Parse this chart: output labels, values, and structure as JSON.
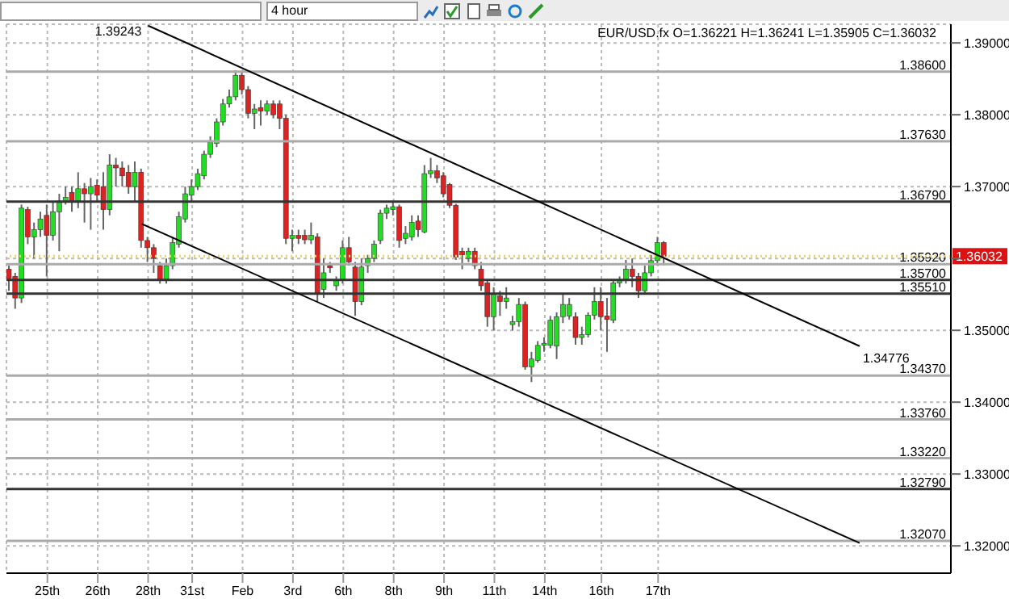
{
  "chart_data": {
    "type": "candlestick",
    "title": "EUR/USD.fx O=1.36221 H=1.36241 L=1.35905 C=1.36032",
    "annotations": [
      "4 hour",
      "1.39243",
      "1.34776"
    ],
    "categories": [
      null,
      null,
      null,
      null,
      null,
      null,
      "25th",
      null,
      null,
      null,
      null,
      null,
      null,
      null,
      "26th",
      null,
      null,
      null,
      null,
      null,
      null,
      null,
      "28th",
      null,
      null,
      null,
      null,
      null,
      null,
      "31st",
      null,
      null,
      null,
      null,
      null,
      null,
      null,
      "Feb",
      null,
      null,
      null,
      null,
      null,
      null,
      null,
      "3rd",
      null,
      null,
      null,
      null,
      null,
      null,
      null,
      "6th",
      null,
      null,
      null,
      null,
      null,
      null,
      null,
      "8th",
      null,
      null,
      null,
      null,
      null,
      null,
      null,
      "9th",
      null,
      null,
      null,
      null,
      null,
      null,
      null,
      "11th",
      null,
      null,
      null,
      null,
      null,
      null,
      null,
      "14th",
      null,
      null,
      null,
      null,
      null,
      null,
      null,
      null,
      "16th",
      null,
      null,
      null,
      null,
      null,
      null,
      null,
      null,
      "17th",
      null,
      null,
      null,
      null,
      null,
      null,
      null,
      null,
      null,
      null,
      null,
      null,
      null,
      null,
      null,
      null,
      null,
      null,
      null,
      null,
      null,
      null,
      null,
      null,
      null,
      null,
      null,
      null,
      null,
      null,
      null,
      null,
      null,
      null,
      null,
      null,
      null,
      null,
      null,
      null,
      null,
      null,
      null,
      null,
      null,
      null
    ],
    "ohlc": [
      [
        1.3585,
        1.359,
        1.3555,
        1.3572
      ],
      [
        1.3575,
        1.358,
        1.353,
        1.3545
      ],
      [
        1.3545,
        1.3675,
        1.3538,
        1.367
      ],
      [
        1.3668,
        1.3672,
        1.362,
        1.363
      ],
      [
        1.363,
        1.365,
        1.36,
        1.364
      ],
      [
        1.364,
        1.3665,
        1.363,
        1.3655
      ],
      [
        1.366,
        1.3675,
        1.3575,
        1.3632
      ],
      [
        1.3632,
        1.368,
        1.3625,
        1.3665
      ],
      [
        1.3665,
        1.369,
        1.361,
        1.368
      ],
      [
        1.368,
        1.37,
        1.3675,
        1.3685
      ],
      [
        1.3692,
        1.37,
        1.3665,
        1.368
      ],
      [
        1.368,
        1.372,
        1.367,
        1.3697
      ],
      [
        1.3697,
        1.3705,
        1.365,
        1.369
      ],
      [
        1.369,
        1.3712,
        1.364,
        1.37
      ],
      [
        1.3702,
        1.371,
        1.368,
        1.3688
      ],
      [
        1.37,
        1.372,
        1.364,
        1.3668
      ],
      [
        1.3668,
        1.3745,
        1.366,
        1.373
      ],
      [
        1.373,
        1.374,
        1.37,
        1.3726
      ],
      [
        1.3726,
        1.3735,
        1.37,
        1.3715
      ],
      [
        1.372,
        1.373,
        1.369,
        1.37
      ],
      [
        1.37,
        1.3735,
        1.368,
        1.372
      ],
      [
        1.372,
        1.3725,
        1.3615,
        1.3625
      ],
      [
        1.3625,
        1.363,
        1.3595,
        1.3615
      ],
      [
        1.3615,
        1.362,
        1.358,
        1.36
      ],
      [
        1.359,
        1.3595,
        1.3565,
        1.357
      ],
      [
        1.357,
        1.36,
        1.3565,
        1.359
      ],
      [
        1.359,
        1.363,
        1.3585,
        1.3622
      ],
      [
        1.362,
        1.3665,
        1.3615,
        1.3658
      ],
      [
        1.3655,
        1.37,
        1.365,
        1.369
      ],
      [
        1.3688,
        1.371,
        1.368,
        1.37
      ],
      [
        1.37,
        1.3725,
        1.3695,
        1.3718
      ],
      [
        1.3715,
        1.375,
        1.371,
        1.3745
      ],
      [
        1.3745,
        1.377,
        1.374,
        1.3762
      ],
      [
        1.376,
        1.3795,
        1.3755,
        1.379
      ],
      [
        1.379,
        1.3822,
        1.3785,
        1.3815
      ],
      [
        1.3815,
        1.3835,
        1.381,
        1.3825
      ],
      [
        1.3825,
        1.3862,
        1.382,
        1.3855
      ],
      [
        1.3855,
        1.386,
        1.3828,
        1.3835
      ],
      [
        1.3835,
        1.384,
        1.3795,
        1.3802
      ],
      [
        1.3802,
        1.3815,
        1.378,
        1.3808
      ],
      [
        1.381,
        1.382,
        1.3785,
        1.3805
      ],
      [
        1.3805,
        1.382,
        1.38,
        1.3815
      ],
      [
        1.3815,
        1.382,
        1.3795,
        1.38
      ],
      [
        1.3815,
        1.382,
        1.378,
        1.3795
      ],
      [
        1.3795,
        1.38,
        1.362,
        1.3628
      ],
      [
        1.3628,
        1.364,
        1.361,
        1.3632
      ],
      [
        1.3632,
        1.364,
        1.362,
        1.3628
      ],
      [
        1.3632,
        1.364,
        1.362,
        1.3626
      ],
      [
        1.3626,
        1.365,
        1.362,
        1.3632
      ],
      [
        1.363,
        1.3635,
        1.354,
        1.355
      ],
      [
        1.3557,
        1.36,
        1.3545,
        1.358
      ],
      [
        1.359,
        1.3595,
        1.358,
        1.3587
      ],
      [
        1.3562,
        1.3575,
        1.3555,
        1.3569
      ],
      [
        1.357,
        1.3625,
        1.3565,
        1.3615
      ],
      [
        1.3615,
        1.363,
        1.359,
        1.3595
      ],
      [
        1.3588,
        1.3595,
        1.352,
        1.354
      ],
      [
        1.354,
        1.36,
        1.3535,
        1.3588
      ],
      [
        1.359,
        1.3605,
        1.358,
        1.36
      ],
      [
        1.36,
        1.3625,
        1.3595,
        1.362
      ],
      [
        1.3625,
        1.3668,
        1.362,
        1.3663
      ],
      [
        1.3663,
        1.3675,
        1.3655,
        1.367
      ],
      [
        1.3668,
        1.368,
        1.366,
        1.3672
      ],
      [
        1.3672,
        1.3675,
        1.3615,
        1.3625
      ],
      [
        1.3628,
        1.3645,
        1.362,
        1.3635
      ],
      [
        1.363,
        1.366,
        1.3625,
        1.365
      ],
      [
        1.3652,
        1.366,
        1.363,
        1.364
      ],
      [
        1.3637,
        1.373,
        1.3635,
        1.3718
      ],
      [
        1.3718,
        1.374,
        1.3712,
        1.3722
      ],
      [
        1.3722,
        1.373,
        1.3705,
        1.3712
      ],
      [
        1.3715,
        1.372,
        1.3685,
        1.369
      ],
      [
        1.3703,
        1.3705,
        1.367,
        1.3674
      ],
      [
        1.3674,
        1.3676,
        1.3598,
        1.3602
      ],
      [
        1.361,
        1.3615,
        1.3585,
        1.3605
      ],
      [
        1.36,
        1.3615,
        1.3595,
        1.361
      ],
      [
        1.361,
        1.3615,
        1.3585,
        1.359
      ],
      [
        1.3585,
        1.3595,
        1.3555,
        1.3562
      ],
      [
        1.3566,
        1.357,
        1.3505,
        1.3519
      ],
      [
        1.3519,
        1.356,
        1.35,
        1.355
      ],
      [
        1.3548,
        1.3555,
        1.352,
        1.354
      ],
      [
        1.354,
        1.356,
        1.353,
        1.3545
      ],
      [
        1.3508,
        1.352,
        1.35,
        1.3512
      ],
      [
        1.3512,
        1.3545,
        1.3505,
        1.3536
      ],
      [
        1.3536,
        1.354,
        1.3445,
        1.3449
      ],
      [
        1.3449,
        1.347,
        1.3428,
        1.346
      ],
      [
        1.3458,
        1.3485,
        1.3455,
        1.3479
      ],
      [
        1.3479,
        1.349,
        1.347,
        1.3482
      ],
      [
        1.3479,
        1.352,
        1.3475,
        1.3514
      ],
      [
        1.3478,
        1.3525,
        1.346,
        1.3519
      ],
      [
        1.3519,
        1.355,
        1.351,
        1.3536
      ],
      [
        1.352,
        1.3545,
        1.3515,
        1.3536
      ],
      [
        1.3519,
        1.3525,
        1.348,
        1.349
      ],
      [
        1.349,
        1.3505,
        1.348,
        1.3494
      ],
      [
        1.3494,
        1.3525,
        1.349,
        1.3521
      ],
      [
        1.3521,
        1.356,
        1.3515,
        1.354
      ],
      [
        1.354,
        1.356,
        1.35,
        1.3519
      ],
      [
        1.352,
        1.3545,
        1.347,
        1.3515
      ],
      [
        1.3514,
        1.357,
        1.351,
        1.3566
      ],
      [
        1.3566,
        1.3575,
        1.356,
        1.357
      ],
      [
        1.357,
        1.3598,
        1.3565,
        1.3585
      ],
      [
        1.3585,
        1.36,
        1.356,
        1.3575
      ],
      [
        1.3575,
        1.358,
        1.3545,
        1.3555
      ],
      [
        1.3555,
        1.359,
        1.355,
        1.358
      ],
      [
        1.358,
        1.3605,
        1.3575,
        1.3597
      ],
      [
        1.3597,
        1.363,
        1.359,
        1.3622
      ],
      [
        1.36221,
        1.36241,
        1.35905,
        1.36032
      ],
      null,
      null,
      null,
      null,
      null,
      null,
      null,
      null,
      null,
      null,
      null,
      null,
      null,
      null,
      null,
      null,
      null,
      null,
      null,
      null,
      null,
      null,
      null,
      null,
      null,
      null,
      null,
      null,
      null,
      null,
      null,
      null,
      null,
      null,
      null,
      null,
      null,
      null,
      null,
      null,
      null,
      null,
      null,
      null,
      null
    ],
    "colors": [
      "#dd2222",
      "#dd2222",
      "#22dd22",
      "#dd2222",
      "#22dd22",
      "#22dd22",
      "#dd2222",
      "#22dd22",
      "#22dd22",
      "#22dd22",
      "#dd2222",
      "#22dd22",
      "#dd2222",
      "#22dd22",
      "#dd2222",
      "#dd2222",
      "#22dd22",
      "#dd2222",
      "#dd2222",
      "#dd2222",
      "#22dd22",
      "#dd2222",
      "#dd2222",
      "#dd2222",
      "#dd2222",
      "#22dd22",
      "#22dd22",
      "#22dd22",
      "#22dd22",
      "#22dd22",
      "#22dd22",
      "#22dd22",
      "#22dd22",
      "#22dd22",
      "#22dd22",
      "#22dd22",
      "#22dd22",
      "#dd2222",
      "#dd2222",
      "#22dd22",
      "#dd2222",
      "#22dd22",
      "#dd2222",
      "#dd2222",
      "#dd2222",
      "#22dd22",
      "#dd2222",
      "#dd2222",
      "#22dd22",
      "#dd2222",
      "#22dd22",
      "#dd2222",
      "#22dd22",
      "#22dd22",
      "#dd2222",
      "#dd2222",
      "#22dd22",
      "#22dd22",
      "#22dd22",
      "#22dd22",
      "#22dd22",
      "#22dd22",
      "#dd2222",
      "#22dd22",
      "#22dd22",
      "#dd2222",
      "#22dd22",
      "#22dd22",
      "#dd2222",
      "#dd2222",
      "#dd2222",
      "#dd2222",
      "#dd2222",
      "#22dd22",
      "#dd2222",
      "#dd2222",
      "#dd2222",
      "#22dd22",
      "#dd2222",
      "#22dd22",
      "#22dd22",
      "#22dd22",
      "#dd2222",
      "#22dd22",
      "#22dd22",
      "#22dd22",
      "#22dd22",
      "#22dd22",
      "#22dd22",
      "#22dd22",
      "#dd2222",
      "#22dd22",
      "#22dd22",
      "#22dd22",
      "#dd2222",
      "#dd2222",
      "#22dd22",
      "#22dd22",
      "#22dd22",
      "#dd2222",
      "#dd2222",
      "#22dd22",
      "#22dd22",
      "#22dd22",
      "#dd2222",
      null,
      null,
      null,
      null,
      null,
      null,
      null,
      null,
      null,
      null,
      null,
      null,
      null,
      null,
      null,
      null,
      null,
      null,
      null,
      null,
      null,
      null,
      null,
      null,
      null,
      null,
      null,
      null,
      null,
      null,
      null,
      null,
      null,
      null,
      null,
      null,
      null,
      null,
      null,
      null,
      null,
      null,
      null,
      null,
      null
    ],
    "series": [
      {
        "type": "line",
        "color": "#000000",
        "values": [
          null,
          null,
          null,
          null,
          null,
          null,
          null,
          null,
          null,
          null,
          null,
          null,
          null,
          null,
          null,
          null,
          null,
          null,
          null,
          null,
          null,
          null,
          1.3924,
          null,
          null,
          null,
          null,
          null,
          null,
          null,
          null,
          null,
          null,
          null,
          null,
          null,
          null,
          null,
          null,
          null,
          null,
          null,
          null,
          null,
          null,
          null,
          null,
          null,
          null,
          null,
          null,
          null,
          null,
          null,
          null,
          null,
          null,
          null,
          null,
          null,
          null,
          null,
          null,
          null,
          null,
          null,
          null,
          null,
          null,
          null,
          null,
          null,
          null,
          null,
          null,
          null,
          null,
          null,
          null,
          null,
          null,
          null,
          null,
          null,
          null,
          null,
          null,
          null,
          null,
          null,
          null,
          null,
          null,
          null,
          null,
          null,
          null,
          null,
          null,
          null,
          null,
          null,
          null,
          null,
          null,
          null,
          null,
          null,
          null,
          null,
          null,
          null,
          null,
          null,
          null,
          null,
          null,
          null,
          null,
          null,
          null,
          null,
          null,
          null,
          null,
          null,
          null,
          null,
          null,
          null,
          null,
          null,
          null,
          null,
          null,
          1.3478,
          null,
          null,
          null,
          null,
          null,
          null,
          null,
          null,
          null,
          null,
          null,
          null,
          null,
          null
        ]
      },
      {
        "type": "line",
        "color": "#000000",
        "values": [
          null,
          null,
          null,
          null,
          null,
          null,
          null,
          null,
          null,
          null,
          null,
          null,
          null,
          null,
          null,
          null,
          null,
          null,
          null,
          null,
          null,
          1.3648,
          null,
          null,
          null,
          null,
          null,
          null,
          null,
          null,
          null,
          null,
          null,
          null,
          null,
          null,
          null,
          null,
          null,
          null,
          null,
          null,
          null,
          null,
          null,
          null,
          null,
          null,
          null,
          null,
          null,
          null,
          null,
          null,
          null,
          null,
          null,
          null,
          null,
          null,
          null,
          null,
          null,
          null,
          null,
          null,
          null,
          null,
          null,
          null,
          null,
          null,
          null,
          null,
          null,
          null,
          null,
          null,
          null,
          null,
          null,
          null,
          null,
          null,
          null,
          null,
          null,
          null,
          null,
          null,
          null,
          null,
          null,
          null,
          null,
          null,
          null,
          null,
          null,
          null,
          null,
          null,
          null,
          null,
          null,
          null,
          null,
          null,
          null,
          null,
          null,
          null,
          null,
          null,
          null,
          null,
          null,
          null,
          null,
          null,
          null,
          null,
          null,
          null,
          null,
          null,
          null,
          null,
          null,
          null,
          null,
          null,
          null,
          null,
          null,
          1.3204,
          null,
          null,
          null,
          null,
          null,
          null,
          null,
          null,
          null,
          null,
          null,
          null,
          null,
          null
        ]
      }
    ],
    "ylim": [
      1.3162,
      1.3926
    ],
    "yticks": [
      {
        "value": 1.32,
        "label": "1.32000"
      },
      {
        "value": 1.33,
        "label": "1.33000"
      },
      {
        "value": 1.34,
        "label": "1.34000"
      },
      {
        "value": 1.35,
        "label": "1.35000"
      },
      {
        "value": 1.36,
        "label": null
      },
      {
        "value": 1.37,
        "label": "1.37000"
      },
      {
        "value": 1.38,
        "label": "1.38000"
      },
      {
        "value": 1.39,
        "label": "1.39000"
      }
    ],
    "ref_lines": [
      {
        "axis": "y",
        "value": 1.386,
        "label": "1.38600",
        "color": "#aaaaaa"
      },
      {
        "axis": "y",
        "value": 1.3763,
        "label": "1.37630",
        "color": "#aaaaaa"
      },
      {
        "axis": "y",
        "value": 1.3679,
        "label": "1.36790",
        "color": "#333333"
      },
      {
        "axis": "y",
        "value": 1.3592,
        "label": "1.35920",
        "color": "#aaaaaa"
      },
      {
        "axis": "y",
        "value": 1.357,
        "label": "1.35700",
        "color": "#333333"
      },
      {
        "axis": "y",
        "value": 1.3551,
        "label": "1.35510",
        "color": "#333333"
      },
      {
        "axis": "y",
        "value": 1.3437,
        "label": "1.34370",
        "color": "#aaaaaa"
      },
      {
        "axis": "y",
        "value": 1.3376,
        "label": "1.33760",
        "color": "#aaaaaa"
      },
      {
        "axis": "y",
        "value": 1.3322,
        "label": "1.33220",
        "color": "#aaaaaa"
      },
      {
        "axis": "y",
        "value": 1.3279,
        "label": "1.32790",
        "color": "#333333"
      },
      {
        "axis": "y",
        "value": 1.3207,
        "label": "1.32070",
        "color": "#aaaaaa"
      },
      {
        "axis": "y",
        "value": 1.36032,
        "label": "1.36032",
        "color": "#e8d870",
        "line_style": "dotted"
      }
    ],
    "grid": true
  }
}
